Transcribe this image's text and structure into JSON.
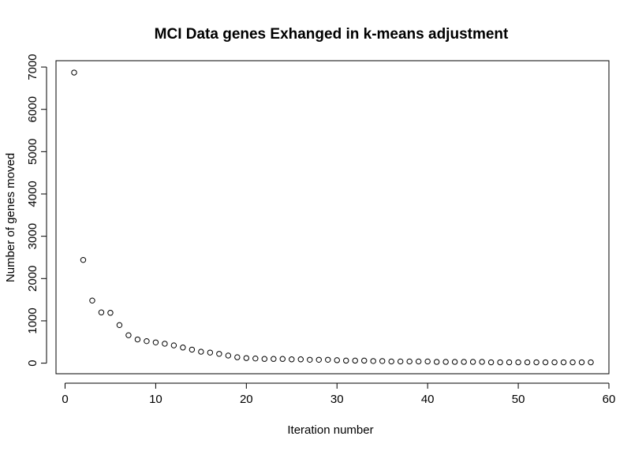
{
  "chart_data": {
    "type": "scatter",
    "title": "MCI Data genes Exhanged in k-means adjustment",
    "xlabel": "Iteration number",
    "ylabel": "Number of genes moved",
    "xlim": [
      -1,
      60
    ],
    "ylim": [
      -250,
      7150
    ],
    "x_ticks": [
      0,
      10,
      20,
      30,
      40,
      50,
      60
    ],
    "y_ticks": [
      0,
      1000,
      2000,
      3000,
      4000,
      5000,
      6000,
      7000
    ],
    "grid": false,
    "marker": "open-circle",
    "color": "#000000",
    "x": [
      1,
      2,
      3,
      4,
      5,
      6,
      7,
      8,
      9,
      10,
      11,
      12,
      13,
      14,
      15,
      16,
      17,
      18,
      19,
      20,
      21,
      22,
      23,
      24,
      25,
      26,
      27,
      28,
      29,
      30,
      31,
      32,
      33,
      34,
      35,
      36,
      37,
      38,
      39,
      40,
      41,
      42,
      43,
      44,
      45,
      46,
      47,
      48,
      49,
      50,
      51,
      52,
      53,
      54,
      55,
      56,
      57,
      58
    ],
    "y": [
      6870,
      2440,
      1480,
      1200,
      1190,
      900,
      660,
      560,
      520,
      490,
      460,
      420,
      370,
      320,
      270,
      250,
      220,
      180,
      140,
      120,
      110,
      100,
      100,
      100,
      90,
      90,
      80,
      80,
      80,
      70,
      60,
      60,
      60,
      50,
      50,
      40,
      40,
      40,
      40,
      40,
      30,
      30,
      30,
      30,
      30,
      30,
      20,
      20,
      20,
      20,
      20,
      20,
      20,
      20,
      20,
      20,
      20,
      20
    ]
  }
}
